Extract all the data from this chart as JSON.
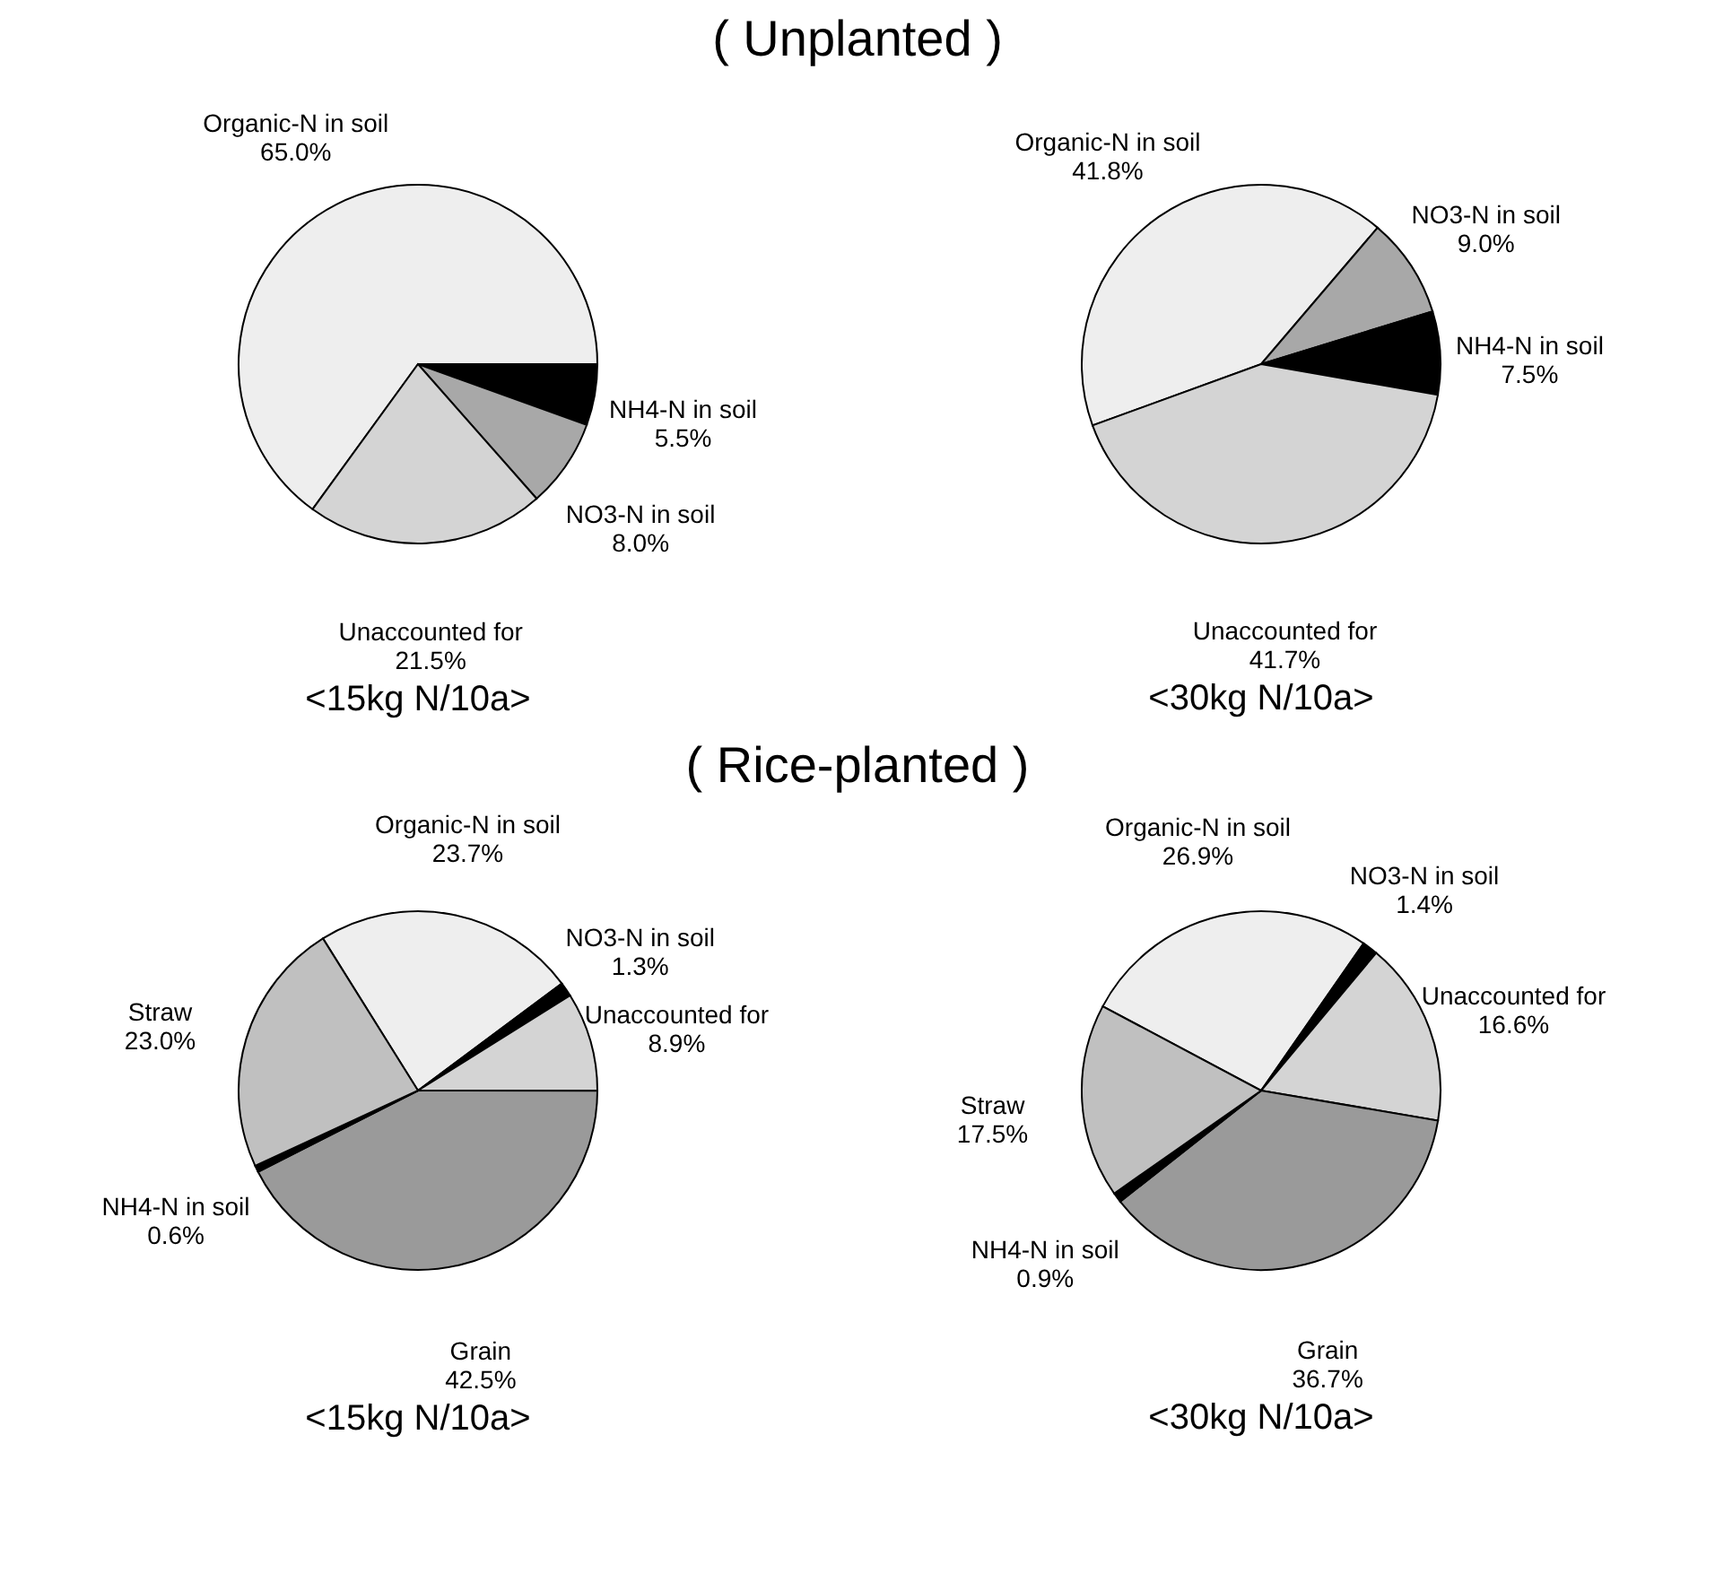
{
  "chart_data": [
    {
      "type": "pie",
      "title": "( Unplanted )",
      "subtitle": "<15kg N/10a>",
      "categories": [
        "Organic-N in soil",
        "NH4-N in soil",
        "NO3-N in soil",
        "Unaccounted for"
      ],
      "values": [
        65.0,
        5.5,
        8.0,
        21.5
      ],
      "value_labels": [
        "65.0%",
        "5.5%",
        "8.0%",
        "21.5%"
      ],
      "colors": [
        "#eeeeee",
        "#000000",
        "#a8a8a8",
        "#d4d4d4"
      ]
    },
    {
      "type": "pie",
      "subtitle": "<30kg N/10a>",
      "categories": [
        "Organic-N in soil",
        "NO3-N in soil",
        "NH4-N in soil",
        "Unaccounted for"
      ],
      "values": [
        41.8,
        9.0,
        7.5,
        41.7
      ],
      "value_labels": [
        "41.8%",
        "9.0%",
        "7.5%",
        "41.7%"
      ],
      "colors": [
        "#eeeeee",
        "#a8a8a8",
        "#000000",
        "#d4d4d4"
      ]
    },
    {
      "type": "pie",
      "title": "( Rice-planted )",
      "subtitle": "<15kg N/10a>",
      "categories": [
        "Organic-N in soil",
        "NO3-N in soil",
        "Unaccounted for",
        "Grain",
        "NH4-N in soil",
        "Straw"
      ],
      "values": [
        23.7,
        1.3,
        8.9,
        42.5,
        0.6,
        23.0
      ],
      "value_labels": [
        "23.7%",
        "1.3%",
        "8.9%",
        "42.5%",
        "0.6%",
        "23.0%"
      ],
      "colors": [
        "#eeeeee",
        "#000000",
        "#d4d4d4",
        "#9a9a9a",
        "#000000",
        "#c0c0c0"
      ]
    },
    {
      "type": "pie",
      "subtitle": "<30kg N/10a>",
      "categories": [
        "Organic-N in soil",
        "NO3-N in soil",
        "Unaccounted for",
        "Grain",
        "NH4-N in soil",
        "Straw"
      ],
      "values": [
        26.9,
        1.4,
        16.6,
        36.7,
        0.9,
        17.5
      ],
      "value_labels": [
        "26.9%",
        "1.4%",
        "16.6%",
        "36.7%",
        "0.9%",
        "17.5%"
      ],
      "colors": [
        "#eeeeee",
        "#000000",
        "#d4d4d4",
        "#9a9a9a",
        "#000000",
        "#c0c0c0"
      ]
    }
  ]
}
